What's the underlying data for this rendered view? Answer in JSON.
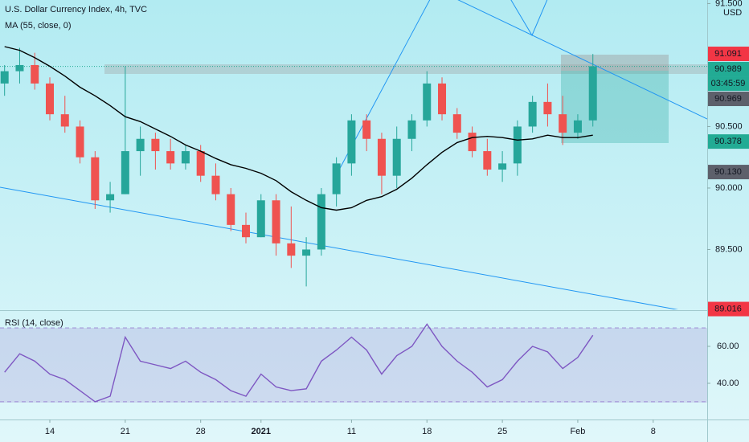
{
  "chart_data": {
    "type": "candlestick",
    "title": "U.S. Dollar Currency Index, 4h, TVC",
    "currency": "USD",
    "categories": [
      null,
      null,
      null,
      "14",
      null,
      null,
      null,
      null,
      "21",
      null,
      null,
      null,
      null,
      "28",
      null,
      null,
      null,
      "2021",
      null,
      null,
      null,
      null,
      null,
      "11",
      null,
      null,
      null,
      null,
      "18",
      null,
      null,
      null,
      null,
      "25",
      null,
      null,
      null,
      null,
      "Feb",
      null,
      null,
      null,
      null,
      "8"
    ],
    "open": [
      90.85,
      90.95,
      91.0,
      90.85,
      90.6,
      90.5,
      90.25,
      89.9,
      89.95,
      90.3,
      90.4,
      90.3,
      90.2,
      90.3,
      90.1,
      89.95,
      89.7,
      89.6,
      89.9,
      89.55,
      89.45,
      89.5,
      89.95,
      90.2,
      90.55,
      90.4,
      90.1,
      90.4,
      90.55,
      90.85,
      90.6,
      90.45,
      90.3,
      90.15,
      90.2,
      90.5,
      90.7,
      90.6,
      90.45,
      90.55,
      null,
      null,
      null,
      null
    ],
    "high": [
      91.0,
      91.14,
      91.1,
      90.9,
      90.75,
      90.55,
      90.3,
      90.05,
      90.99,
      90.5,
      90.45,
      90.4,
      90.35,
      90.35,
      90.2,
      90.0,
      89.8,
      89.95,
      89.95,
      89.85,
      89.6,
      90.0,
      90.25,
      90.6,
      90.6,
      90.45,
      90.5,
      90.6,
      90.95,
      90.9,
      90.65,
      90.5,
      90.4,
      90.3,
      90.55,
      90.75,
      90.85,
      90.75,
      90.6,
      91.09,
      null,
      null,
      null,
      null
    ],
    "low": [
      90.75,
      90.85,
      90.8,
      90.55,
      90.45,
      90.2,
      89.83,
      89.8,
      89.95,
      90.1,
      90.15,
      90.15,
      90.15,
      90.05,
      89.9,
      89.65,
      89.55,
      89.6,
      89.45,
      89.35,
      89.2,
      89.45,
      89.85,
      90.1,
      90.3,
      89.95,
      90.0,
      90.3,
      90.5,
      90.55,
      90.4,
      90.25,
      90.1,
      90.05,
      90.1,
      90.45,
      90.5,
      90.35,
      90.4,
      90.5,
      null,
      null,
      null,
      null
    ],
    "close": [
      90.95,
      91.0,
      90.85,
      90.6,
      90.5,
      90.25,
      89.9,
      89.95,
      90.3,
      90.4,
      90.3,
      90.2,
      90.3,
      90.1,
      89.95,
      89.7,
      89.6,
      89.9,
      89.55,
      89.45,
      89.5,
      89.95,
      90.2,
      90.55,
      90.4,
      90.1,
      90.4,
      90.55,
      90.85,
      90.6,
      90.45,
      90.3,
      90.15,
      90.2,
      90.5,
      90.7,
      90.6,
      90.45,
      90.55,
      90.99,
      null,
      null,
      null,
      null
    ],
    "up_color": "#26a69a",
    "down_color": "#ef5350",
    "ma": {
      "name": "MA (55, close, 0)",
      "color": "#000000",
      "values": [
        91.15,
        91.12,
        91.06,
        90.99,
        90.91,
        90.82,
        90.75,
        90.67,
        90.58,
        90.54,
        90.48,
        90.42,
        90.35,
        90.3,
        90.24,
        90.19,
        90.16,
        90.12,
        90.06,
        89.97,
        89.9,
        89.84,
        89.82,
        89.84,
        89.9,
        89.93,
        89.99,
        90.08,
        90.19,
        90.29,
        90.37,
        90.41,
        90.42,
        90.41,
        90.39,
        90.4,
        90.43,
        90.41,
        90.41,
        90.43,
        null,
        null,
        null,
        null
      ]
    },
    "ylim": [
      89.013,
      91.529
    ],
    "yticks": [
      {
        "value": 89.5,
        "label": "89.500"
      },
      {
        "value": 90,
        "label": "90.000"
      },
      {
        "value": 90.5,
        "label": "90.500"
      },
      {
        "value": 91.5,
        "label": "91.500"
      }
    ],
    "price_labels": [
      {
        "value": 91.091,
        "label": "91.091",
        "color": "#f23645"
      },
      {
        "value": 90.989,
        "label": "90.989",
        "color": "#22ab94",
        "countdown": "03:45:59"
      },
      {
        "value": 90.969,
        "label": "90.969",
        "color": "#5d606b"
      },
      {
        "value": 90.378,
        "label": "90.378",
        "color": "#22ab94"
      },
      {
        "value": 90.13,
        "label": "90.130",
        "color": "#5d606b"
      },
      {
        "value": 89.016,
        "label": "89.016",
        "color": "#f23645"
      }
    ],
    "rsi": {
      "name": "RSI (14, close)",
      "color": "#7e57c2",
      "values": [
        46,
        56,
        52,
        45,
        42,
        36,
        30,
        33,
        65,
        52,
        50,
        48,
        52,
        46,
        42,
        36,
        33,
        45,
        38,
        36,
        37,
        52,
        58,
        65,
        58,
        45,
        55,
        60,
        72,
        60,
        52,
        46,
        38,
        42,
        52,
        60,
        57,
        48,
        54,
        66,
        null,
        null,
        null,
        null
      ],
      "ylim": [
        20.4,
        78.7
      ],
      "yticks": [
        {
          "value": 40,
          "label": "40.00"
        },
        {
          "value": 60,
          "label": "60.00"
        }
      ],
      "bands": [
        30,
        70
      ]
    }
  }
}
